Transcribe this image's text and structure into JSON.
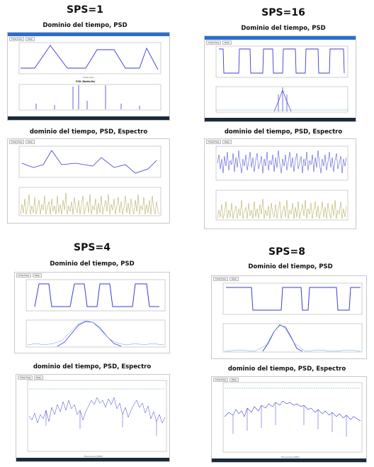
{
  "panels": [
    {
      "id": "sps1",
      "sps_title": "SPS=1",
      "top_caption": "Dominio del tiempo, PSD",
      "bottom_caption": "dominio del tiempo, PSD, Espectro"
    },
    {
      "id": "sps16",
      "sps_title": "SPS=16",
      "top_caption": "Dominio del tiempo, PSD",
      "bottom_caption": "dominio del tiempo, PSD, Espectro"
    },
    {
      "id": "sps4",
      "sps_title": "SPS=4",
      "top_caption": "Dominio del tiempo, PSD",
      "bottom_caption": "dominio del tiempo, PSD, Espectro"
    },
    {
      "id": "sps8",
      "sps_title": "SPS=8",
      "top_caption": "Dominio del tiempo, PSD",
      "bottom_caption": "dominio del tiempo, PSD, Espectro"
    }
  ],
  "window_tabs": [
    "Time Freq",
    "Help"
  ],
  "plot_labels": {
    "time_xlabel": "Time (ms)",
    "amplitude_ylabel": "Amplitude",
    "psd_title": "PSD (Watts/Hz)",
    "spectrum_ylabel": "Espectro (dB)",
    "freq_xlabel": "Frecuencia (MHz)"
  },
  "colors": {
    "signal": "#3b3bd6",
    "psd_noise": "#a8a24a",
    "psd_envelope": "#5aa0c8",
    "window_title": "#2a6fd0",
    "taskbar": "#1b2a3a"
  }
}
